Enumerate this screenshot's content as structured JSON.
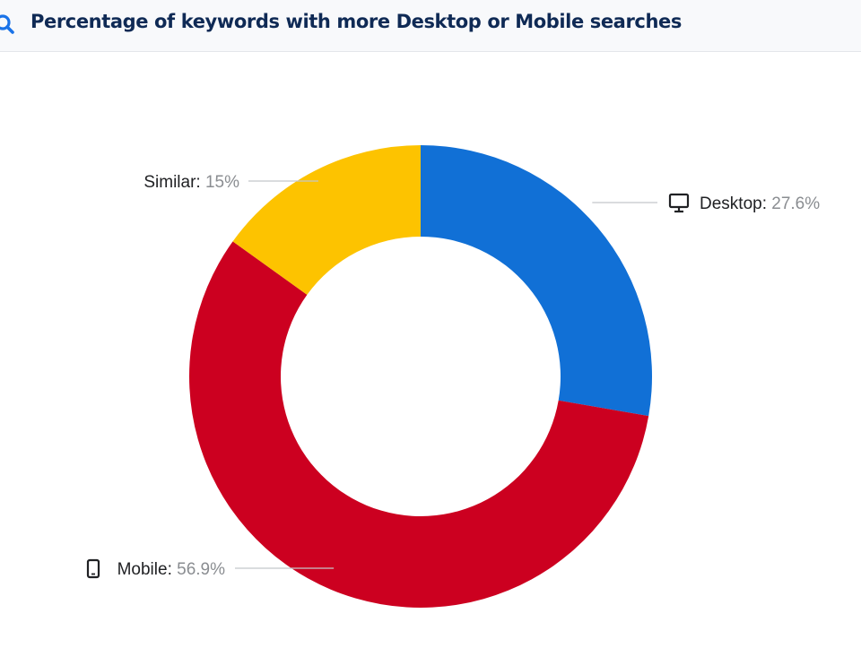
{
  "header": {
    "title": "Percentage of keywords with more Desktop or Mobile searches",
    "icon": "search-icon"
  },
  "chart_data": {
    "type": "pie",
    "variant": "donut",
    "title": "Percentage of keywords with more Desktop or Mobile searches",
    "slices": [
      {
        "label": "Desktop",
        "value": 27.6,
        "display": "27.6%",
        "color": "#1170d6",
        "icon": "desktop-monitor-icon"
      },
      {
        "label": "Mobile",
        "value": 56.9,
        "display": "56.9%",
        "color": "#cc0020",
        "icon": "mobile-phone-icon"
      },
      {
        "label": "Similar",
        "value": 15,
        "display": "15%",
        "color": "#fdc300",
        "icon": ""
      }
    ],
    "legend": "none",
    "labels": "outside-with-leader-lines"
  }
}
